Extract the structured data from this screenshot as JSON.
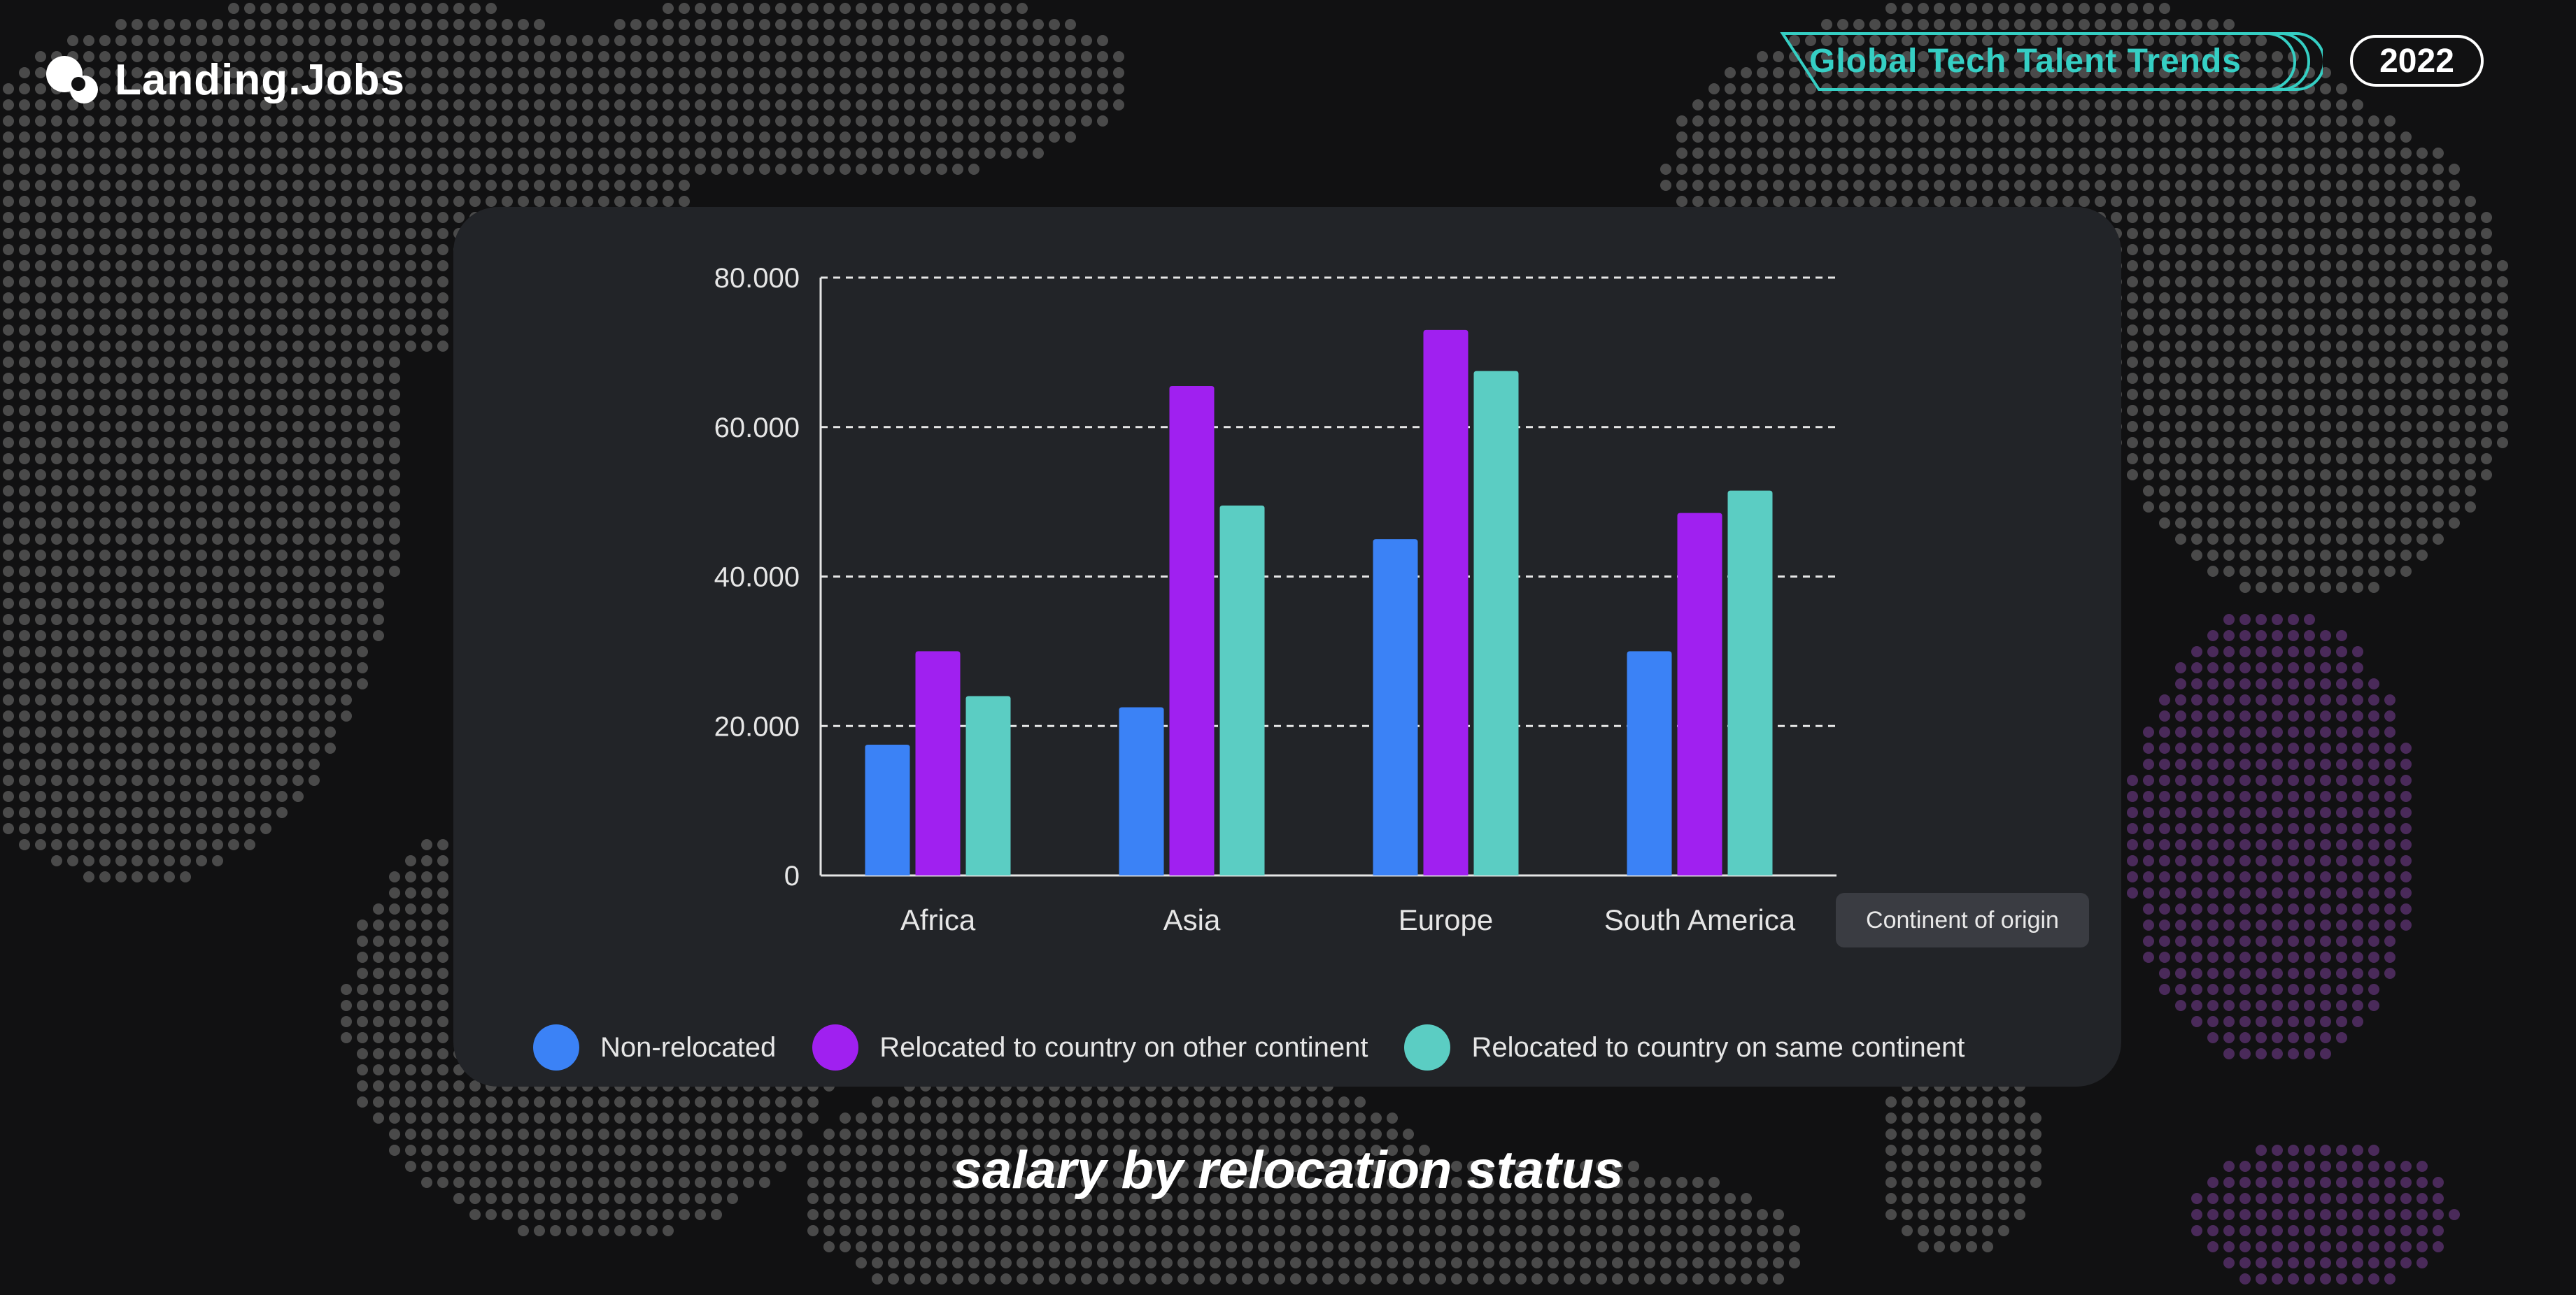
{
  "brand": {
    "name": "Landing.Jobs"
  },
  "header": {
    "badge": "Global Tech Talent Trends",
    "year": "2022"
  },
  "caption": "salary by relocation status",
  "colors": {
    "background": "#111112",
    "card": "#222428",
    "accent": "#35cfc4",
    "dot_grey": "#4a4a4a",
    "dot_purple": "#4a2a5a"
  },
  "chart_data": {
    "type": "bar",
    "title": "salary by relocation status",
    "categories": [
      "Africa",
      "Asia",
      "Europe",
      "South America"
    ],
    "xlabel": "Continent of origin",
    "ylabel": "",
    "ylim": [
      0,
      80000
    ],
    "yticks": [
      0,
      20000,
      40000,
      60000,
      80000
    ],
    "ytick_labels": [
      "0",
      "20.000",
      "40.000",
      "60.000",
      "80.000"
    ],
    "grid": "horizontal dashed",
    "legend_position": "bottom",
    "series": [
      {
        "name": "Non-relocated",
        "color": "#3b82f6",
        "values": [
          17500,
          22500,
          45000,
          30000
        ]
      },
      {
        "name": "Relocated to country on other continent",
        "color": "#a020f0",
        "values": [
          30000,
          65500,
          73000,
          48500
        ]
      },
      {
        "name": "Relocated to country on same continent",
        "color": "#5bcdc3",
        "values": [
          24000,
          49500,
          67500,
          51500
        ]
      }
    ]
  }
}
